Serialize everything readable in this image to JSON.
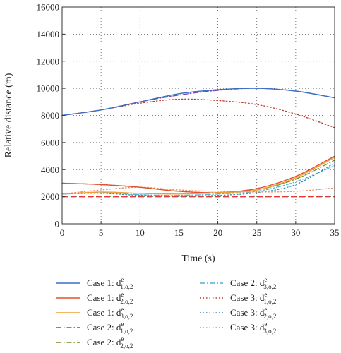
{
  "chart_data": {
    "type": "line",
    "xlabel": "Time (s)",
    "ylabel": "Relative distance (m)",
    "xlim": [
      0,
      35
    ],
    "ylim": [
      0,
      16000
    ],
    "xticks": [
      0,
      5,
      10,
      15,
      20,
      25,
      30,
      35
    ],
    "yticks": [
      0,
      2000,
      4000,
      6000,
      8000,
      10000,
      12000,
      14000,
      16000
    ],
    "grid": true,
    "grid_style": "dotted",
    "legend_position": "bottom",
    "x": [
      0,
      5,
      10,
      15,
      20,
      25,
      30,
      35
    ],
    "reference_line": {
      "y": 2000,
      "color": "#e53935",
      "style": "dashed"
    },
    "series": [
      {
        "name": "Case 1: d",
        "sup": "e",
        "sub": "1,o,2",
        "color": "#3a6fc4",
        "style": "solid",
        "values": [
          8000,
          8400,
          9000,
          9600,
          9900,
          10000,
          9800,
          9300
        ]
      },
      {
        "name": "Case 1: d",
        "sup": "e",
        "sub": "2,o,2",
        "color": "#e5502a",
        "style": "solid",
        "values": [
          3000,
          2900,
          2700,
          2400,
          2300,
          2600,
          3500,
          5000
        ]
      },
      {
        "name": "Case 1: d",
        "sup": "e",
        "sub": "3,o,2",
        "color": "#f0a030",
        "style": "solid",
        "values": [
          2200,
          2350,
          2250,
          2200,
          2300,
          2500,
          3400,
          4900
        ]
      },
      {
        "name": "Case 2: d",
        "sup": "e",
        "sub": "1,o,2",
        "color": "#7a3fb5",
        "style": "dashdot",
        "values": [
          8000,
          8400,
          9000,
          9500,
          9850,
          10000,
          9800,
          9300
        ]
      },
      {
        "name": "Case 2: d",
        "sup": "e",
        "sub": "2,o,2",
        "color": "#6b8e23",
        "style": "dashdot",
        "values": [
          3000,
          2900,
          2700,
          2400,
          2300,
          2500,
          3300,
          4700
        ]
      },
      {
        "name": "Case 2: d",
        "sup": "e",
        "sub": "3,o,2",
        "color": "#4fb3d8",
        "style": "dashdot",
        "values": [
          2200,
          2300,
          2150,
          2100,
          2200,
          2400,
          3100,
          4300
        ]
      },
      {
        "name": "Case 3: d",
        "sup": "e",
        "sub": "1,o,2",
        "color": "#c0392b",
        "style": "dotted",
        "values": [
          8000,
          8400,
          8900,
          9200,
          9100,
          8800,
          8100,
          7100
        ]
      },
      {
        "name": "Case 3: d",
        "sup": "e",
        "sub": "2,o,2",
        "color": "#2a8fbf",
        "style": "dotted",
        "values": [
          2200,
          2250,
          2100,
          2050,
          2100,
          2300,
          2900,
          4500
        ]
      },
      {
        "name": "Case 3: d",
        "sup": "e",
        "sub": "3,o,2",
        "color": "#f08a60",
        "style": "dotted",
        "values": [
          2200,
          2500,
          2700,
          2500,
          2400,
          2350,
          2400,
          2650
        ]
      }
    ]
  }
}
